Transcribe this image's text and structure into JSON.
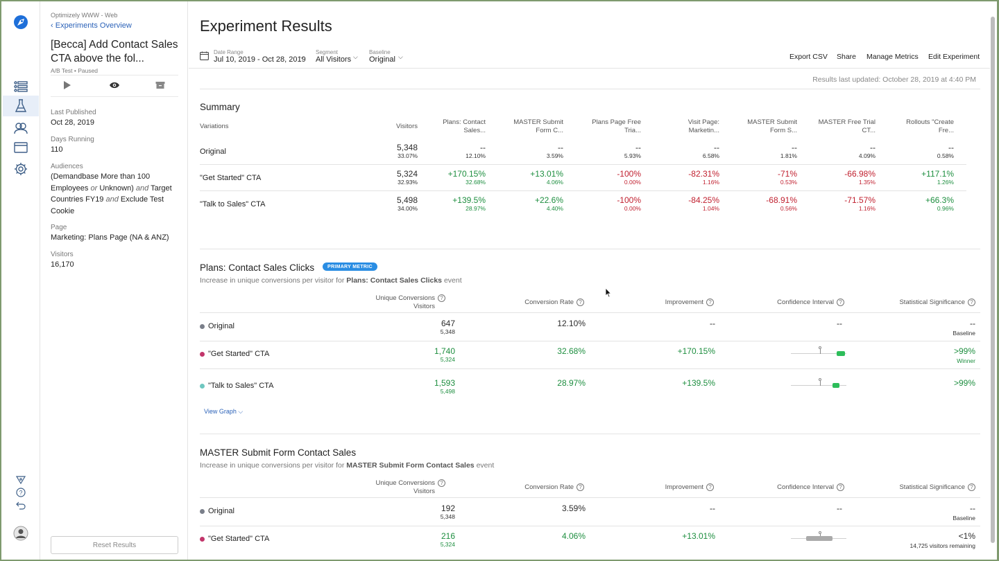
{
  "app": {
    "colors": {
      "accent": "#2a8de3",
      "link": "#2b62b8",
      "positive": "#1d8e3f",
      "negative": "#c01f2e"
    }
  },
  "rail": {
    "icons": [
      "logo-icon",
      "list-icon",
      "flask-icon",
      "audiences-icon",
      "window-icon",
      "gear-icon",
      "network-icon",
      "help-icon",
      "undo-icon",
      "user-icon"
    ]
  },
  "sidebar": {
    "project": "Optimizely WWW - Web",
    "back": "Experiments Overview",
    "title": "[Becca] Add Contact Sales CTA above the fol...",
    "subtitle": "A/B Test • Paused",
    "last_published_label": "Last Published",
    "last_published": "Oct 28, 2019",
    "days_running_label": "Days Running",
    "days_running": "110",
    "audiences_label": "Audiences",
    "audiences": {
      "p1": "(Demandbase More than 100 Employees",
      "or": "or",
      "p2": "Unknown)",
      "and1": "and",
      "p3": "Target Countries FY19",
      "and2": "and",
      "p4": "Exclude Test Cookie"
    },
    "page_label": "Page",
    "page": "Marketing: Plans Page (NA & ANZ)",
    "visitors_label": "Visitors",
    "visitors": "16,170",
    "reset": "Reset Results"
  },
  "header": {
    "title": "Experiment Results",
    "date_label": "Date Range",
    "date_value": "Jul 10, 2019 - Oct 28, 2019",
    "segment_label": "Segment",
    "segment_value": "All Visitors",
    "baseline_label": "Baseline",
    "baseline_value": "Original",
    "export": "Export CSV",
    "share": "Share",
    "manage": "Manage Metrics",
    "edit": "Edit Experiment",
    "updated": "Results last updated: October 28, 2019 at 4:40 PM"
  },
  "summary": {
    "title": "Summary",
    "col_variations": "Variations",
    "col_visitors": "Visitors",
    "metrics": [
      [
        "Plans: Contact",
        "Sales..."
      ],
      [
        "MASTER Submit",
        "Form C..."
      ],
      [
        "Plans Page Free",
        "Tria..."
      ],
      [
        "Visit Page:",
        "Marketin..."
      ],
      [
        "MASTER Submit",
        "Form S..."
      ],
      [
        "MASTER Free Trial",
        "CT..."
      ],
      [
        "Rollouts \"Create",
        "Fre..."
      ]
    ],
    "rows": [
      {
        "name": "Original",
        "visitors": "5,348",
        "pct": "33.07%",
        "cells": [
          [
            "--",
            "12.10%"
          ],
          [
            "--",
            "3.59%"
          ],
          [
            "--",
            "5.93%"
          ],
          [
            "--",
            "6.58%"
          ],
          [
            "--",
            "1.81%"
          ],
          [
            "--",
            "4.09%"
          ],
          [
            "--",
            "0.58%"
          ]
        ]
      },
      {
        "name": "\"Get Started\" CTA",
        "visitors": "5,324",
        "pct": "32.93%",
        "cells": [
          [
            "+170.15%",
            "32.68%"
          ],
          [
            "+13.01%",
            "4.06%"
          ],
          [
            "-100%",
            "0.00%"
          ],
          [
            "-82.31%",
            "1.16%"
          ],
          [
            "-71%",
            "0.53%"
          ],
          [
            "-66.98%",
            "1.35%"
          ],
          [
            "+117.1%",
            "1.26%"
          ]
        ]
      },
      {
        "name": "\"Talk to Sales\" CTA",
        "visitors": "5,498",
        "pct": "34.00%",
        "cells": [
          [
            "+139.5%",
            "28.97%"
          ],
          [
            "+22.6%",
            "4.40%"
          ],
          [
            "-100%",
            "0.00%"
          ],
          [
            "-84.25%",
            "1.04%"
          ],
          [
            "-68.91%",
            "0.56%"
          ],
          [
            "-71.57%",
            "1.16%"
          ],
          [
            "+66.3%",
            "0.96%"
          ]
        ]
      }
    ]
  },
  "metric1": {
    "title": "Plans: Contact Sales Clicks",
    "badge": "PRIMARY METRIC",
    "desc_pre": "Increase in unique conversions per visitor for",
    "desc_event": "Plans: Contact Sales Clicks",
    "desc_post": "event",
    "col_conv": "Unique Conversions",
    "col_visitors": "Visitors",
    "col_rate": "Conversion Rate",
    "col_impr": "Improvement",
    "col_ci": "Confidence Interval",
    "col_sig": "Statistical Significance",
    "rows": [
      {
        "name": "Original",
        "conv": "647",
        "visitors": "5,348",
        "rate": "12.10%",
        "impr": "--",
        "ci": "--",
        "sig": "--",
        "sig_sub": "Baseline",
        "dot": "#7a7f8a"
      },
      {
        "name": "\"Get Started\" CTA",
        "conv": "1,740",
        "visitors": "5,324",
        "rate": "32.68%",
        "impr": "+170.15%",
        "sig": ">99%",
        "sig_sub": "Winner",
        "dot": "#c2366b"
      },
      {
        "name": "\"Talk to Sales\" CTA",
        "conv": "1,593",
        "visitors": "5,498",
        "rate": "28.97%",
        "impr": "+139.5%",
        "sig": ">99%",
        "sig_sub": "",
        "dot": "#6fc7c0"
      }
    ],
    "view_graph": "View Graph"
  },
  "metric2": {
    "title": "MASTER Submit Form Contact Sales",
    "desc_pre": "Increase in unique conversions per visitor for",
    "desc_event": "MASTER Submit Form Contact Sales",
    "desc_post": "event",
    "col_conv": "Unique Conversions",
    "col_visitors": "Visitors",
    "col_rate": "Conversion Rate",
    "col_impr": "Improvement",
    "col_ci": "Confidence Interval",
    "col_sig": "Statistical Significance",
    "rows": [
      {
        "name": "Original",
        "conv": "192",
        "visitors": "5,348",
        "rate": "3.59%",
        "impr": "--",
        "ci": "--",
        "sig": "--",
        "sig_sub": "Baseline",
        "dot": "#7a7f8a"
      },
      {
        "name": "\"Get Started\" CTA",
        "conv": "216",
        "visitors": "5,324",
        "rate": "4.06%",
        "impr": "+13.01%",
        "sig": "<1%",
        "sig_sub": "14,725 visitors remaining",
        "dot": "#c2366b"
      }
    ]
  }
}
